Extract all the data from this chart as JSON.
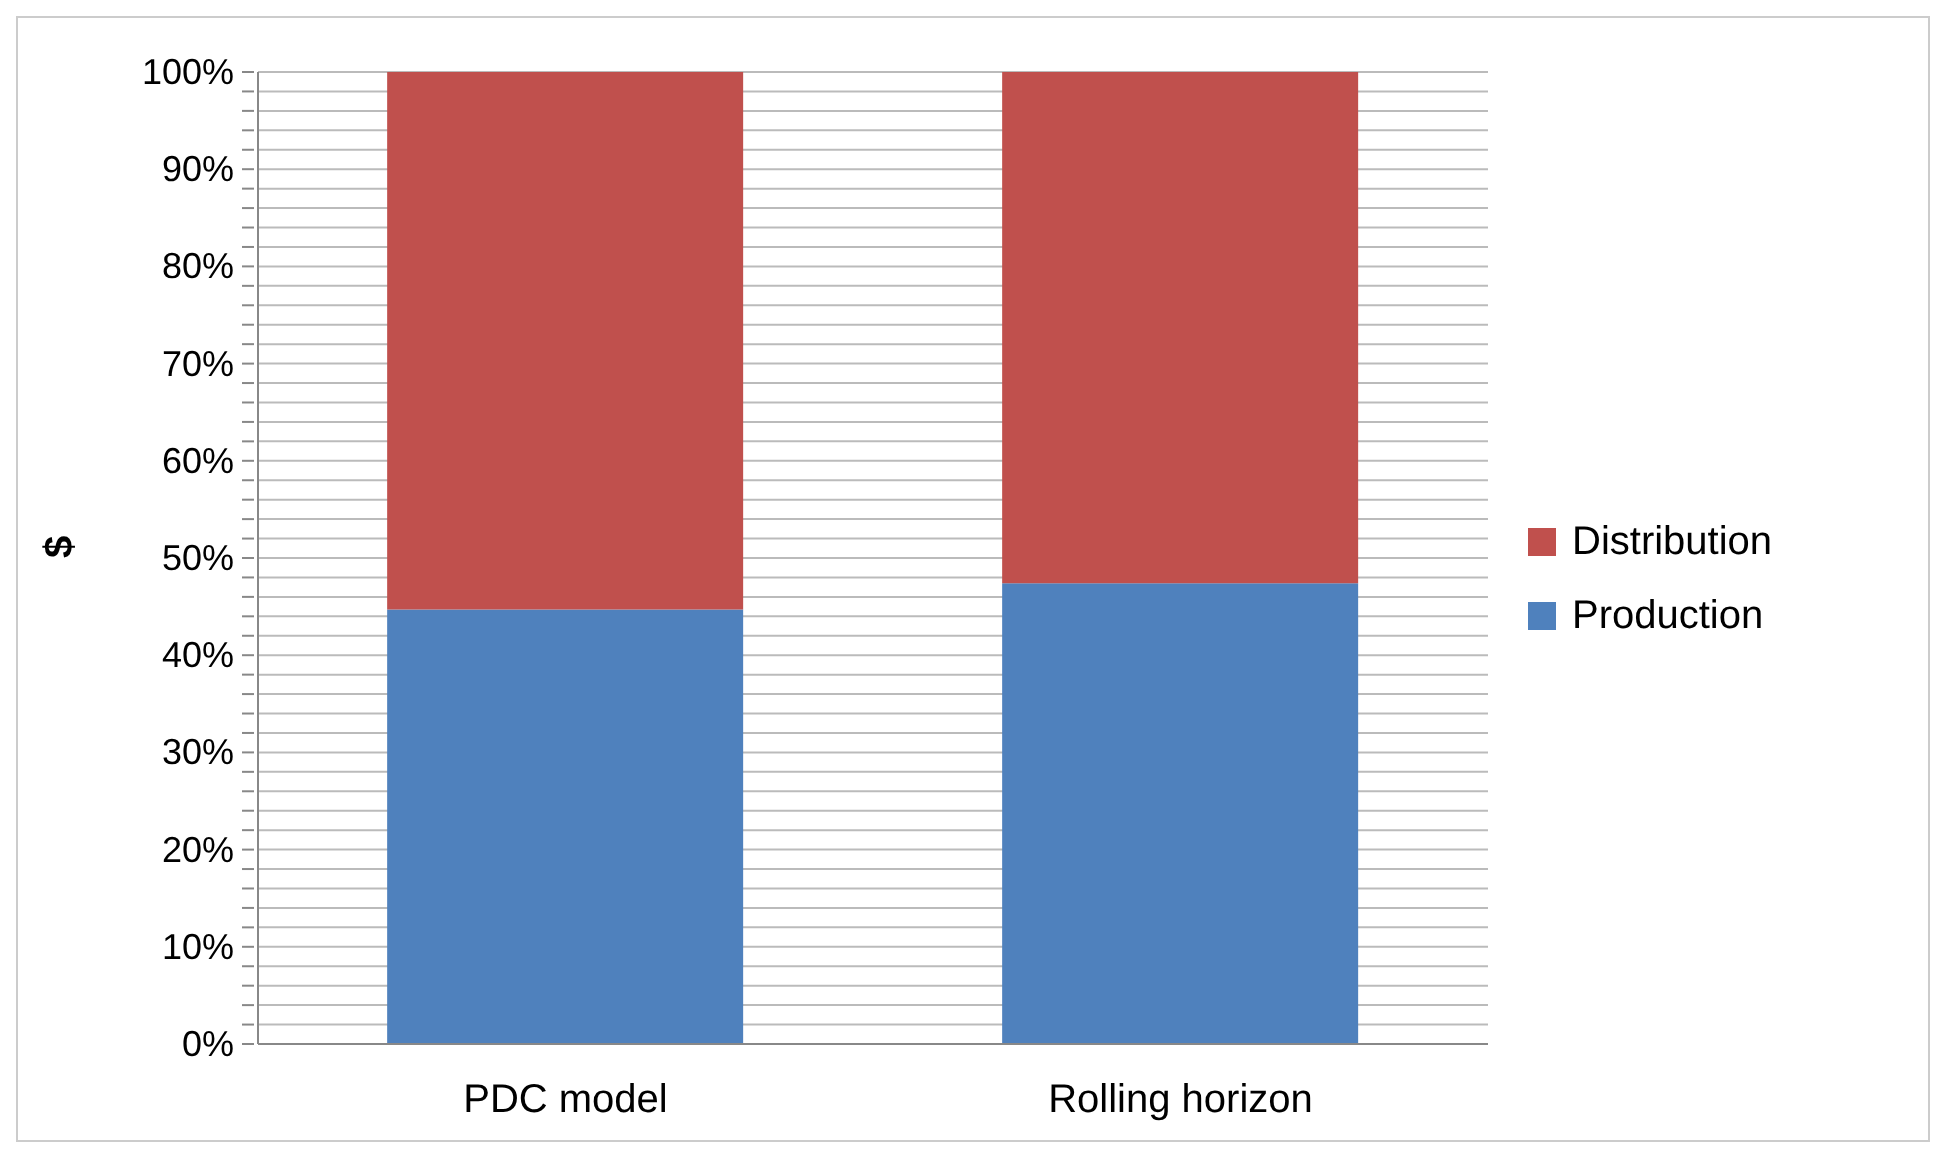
{
  "chart_data": {
    "type": "bar",
    "stacked": true,
    "ylabel": "$",
    "categories": [
      "PDC model",
      "Rolling horizon"
    ],
    "series": [
      {
        "name": "Production",
        "color": "#4f81bd",
        "values": [
          44.7,
          47.4
        ]
      },
      {
        "name": "Distribution",
        "color": "#c0504d",
        "values": [
          55.3,
          52.6
        ]
      }
    ],
    "ylim": [
      0,
      100
    ],
    "yticks": [
      {
        "value": 0,
        "label": "0%"
      },
      {
        "value": 2,
        "label": null
      },
      {
        "value": 4,
        "label": null
      },
      {
        "value": 6,
        "label": null
      },
      {
        "value": 8,
        "label": null
      },
      {
        "value": 10,
        "label": "10%"
      },
      {
        "value": 12,
        "label": null
      },
      {
        "value": 14,
        "label": null
      },
      {
        "value": 16,
        "label": null
      },
      {
        "value": 18,
        "label": null
      },
      {
        "value": 20,
        "label": "20%"
      },
      {
        "value": 22,
        "label": null
      },
      {
        "value": 24,
        "label": null
      },
      {
        "value": 26,
        "label": null
      },
      {
        "value": 28,
        "label": null
      },
      {
        "value": 30,
        "label": "30%"
      },
      {
        "value": 32,
        "label": null
      },
      {
        "value": 34,
        "label": null
      },
      {
        "value": 36,
        "label": null
      },
      {
        "value": 38,
        "label": null
      },
      {
        "value": 40,
        "label": "40%"
      },
      {
        "value": 42,
        "label": null
      },
      {
        "value": 44,
        "label": null
      },
      {
        "value": 46,
        "label": null
      },
      {
        "value": 48,
        "label": null
      },
      {
        "value": 50,
        "label": "50%"
      },
      {
        "value": 52,
        "label": null
      },
      {
        "value": 54,
        "label": null
      },
      {
        "value": 56,
        "label": null
      },
      {
        "value": 58,
        "label": null
      },
      {
        "value": 60,
        "label": "60%"
      },
      {
        "value": 62,
        "label": null
      },
      {
        "value": 64,
        "label": null
      },
      {
        "value": 66,
        "label": null
      },
      {
        "value": 68,
        "label": null
      },
      {
        "value": 70,
        "label": "70%"
      },
      {
        "value": 72,
        "label": null
      },
      {
        "value": 74,
        "label": null
      },
      {
        "value": 76,
        "label": null
      },
      {
        "value": 78,
        "label": null
      },
      {
        "value": 80,
        "label": "80%"
      },
      {
        "value": 82,
        "label": null
      },
      {
        "value": 84,
        "label": null
      },
      {
        "value": 86,
        "label": null
      },
      {
        "value": 88,
        "label": null
      },
      {
        "value": 90,
        "label": "90%"
      },
      {
        "value": 92,
        "label": null
      },
      {
        "value": 94,
        "label": null
      },
      {
        "value": 96,
        "label": null
      },
      {
        "value": 98,
        "label": null
      },
      {
        "value": 100,
        "label": "100%"
      }
    ],
    "grid": "y",
    "legend": "right"
  }
}
